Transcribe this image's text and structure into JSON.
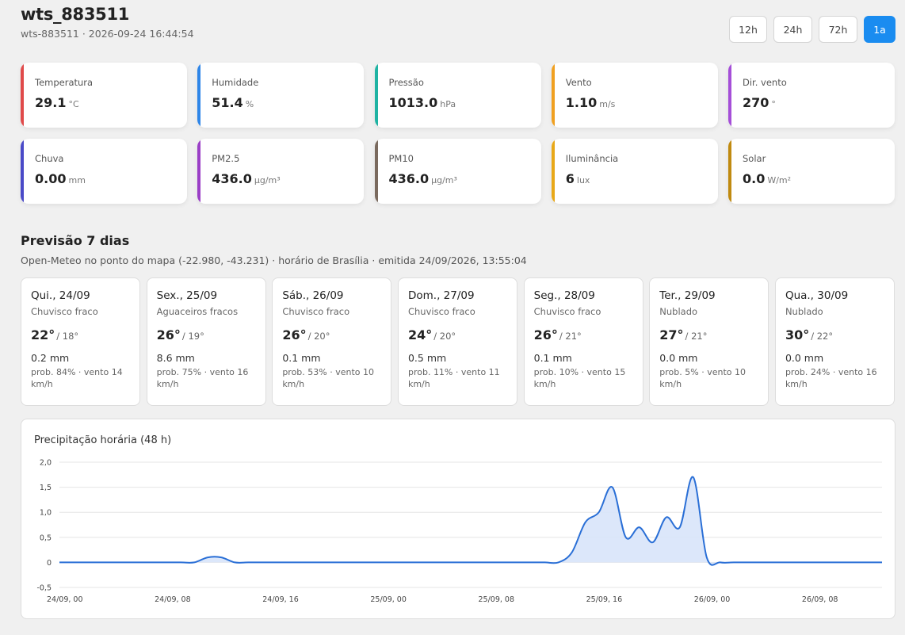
{
  "header": {
    "title": "wts_883511",
    "subtitle": "wts-883511 · 2026-09-24 16:44:54"
  },
  "ranges": [
    {
      "label": "12h",
      "active": false
    },
    {
      "label": "24h",
      "active": false
    },
    {
      "label": "72h",
      "active": false
    },
    {
      "label": "1a",
      "active": true
    }
  ],
  "colors": {
    "accent": "#1a8cf0",
    "chart_line": "#2a6fd6",
    "chart_fill": "#d8e4fa"
  },
  "cards": [
    {
      "label": "Temperatura",
      "value": "29.1",
      "unit": "°C",
      "color": "#e04a4a"
    },
    {
      "label": "Humidade",
      "value": "51.4",
      "unit": "%",
      "color": "#2f86e8"
    },
    {
      "label": "Pressão",
      "value": "1013.0",
      "unit": "hPa",
      "color": "#1fb3a3"
    },
    {
      "label": "Vento",
      "value": "1.10",
      "unit": "m/s",
      "color": "#f0a020"
    },
    {
      "label": "Dir. vento",
      "value": "270",
      "unit": "°",
      "color": "#a54fd8"
    },
    {
      "label": "Chuva",
      "value": "0.00",
      "unit": "mm",
      "color": "#4a4ac8"
    },
    {
      "label": "PM2.5",
      "value": "436.0",
      "unit": "µg/m³",
      "color": "#9b3fc7"
    },
    {
      "label": "PM10",
      "value": "436.0",
      "unit": "µg/m³",
      "color": "#7a6a5e"
    },
    {
      "label": "Iluminância",
      "value": "6",
      "unit": "lux",
      "color": "#e8a818"
    },
    {
      "label": "Solar",
      "value": "0.0",
      "unit": "W/m²",
      "color": "#c08a10"
    }
  ],
  "forecast": {
    "title": "Previsão 7 dias",
    "subtitle": "Open-Meteo no ponto do mapa (-22.980, -43.231) · horário de Brasília · emitida 24/09/2026, 13:55:04",
    "days": [
      {
        "date": "Qui., 24/09",
        "cond": "Chuvisco fraco",
        "max": "22°",
        "min": "/ 18°",
        "rain": "0.2 mm",
        "prob": "prob. 84% · vento 14 km/h"
      },
      {
        "date": "Sex., 25/09",
        "cond": "Aguaceiros fracos",
        "max": "26°",
        "min": "/ 19°",
        "rain": "8.6 mm",
        "prob": "prob. 75% · vento 16 km/h"
      },
      {
        "date": "Sáb., 26/09",
        "cond": "Chuvisco fraco",
        "max": "26°",
        "min": "/ 20°",
        "rain": "0.1 mm",
        "prob": "prob. 53% · vento 10 km/h"
      },
      {
        "date": "Dom., 27/09",
        "cond": "Chuvisco fraco",
        "max": "24°",
        "min": "/ 20°",
        "rain": "0.5 mm",
        "prob": "prob. 11% · vento 11 km/h"
      },
      {
        "date": "Seg., 28/09",
        "cond": "Chuvisco fraco",
        "max": "26°",
        "min": "/ 21°",
        "rain": "0.1 mm",
        "prob": "prob. 10% · vento 15 km/h"
      },
      {
        "date": "Ter., 29/09",
        "cond": "Nublado",
        "max": "27°",
        "min": "/ 21°",
        "rain": "0.0 mm",
        "prob": "prob. 5% · vento 10 km/h"
      },
      {
        "date": "Qua., 30/09",
        "cond": "Nublado",
        "max": "30°",
        "min": "/ 22°",
        "rain": "0.0 mm",
        "prob": "prob. 24% · vento 16 km/h"
      }
    ]
  },
  "chart_data": {
    "type": "area",
    "title": "Precipitação horária (48 h)",
    "xlabel": "",
    "ylabel": "",
    "ylim": [
      -0.5,
      2.0
    ],
    "yticks": [
      "2,0",
      "1,5",
      "1,0",
      "0,5",
      "0",
      "-0,5"
    ],
    "ytick_values": [
      2.0,
      1.5,
      1.0,
      0.5,
      0,
      -0.5
    ],
    "xticks": [
      "24/09, 00",
      "24/09, 08",
      "24/09, 16",
      "25/09, 00",
      "25/09, 08",
      "25/09, 16",
      "26/09, 00",
      "26/09, 08"
    ],
    "xtick_values": [
      0,
      8,
      16,
      24,
      32,
      40,
      48,
      56
    ],
    "xlim": [
      0,
      61
    ],
    "grid": true,
    "legend": "none",
    "series": [
      {
        "x": [
          0,
          1,
          2,
          3,
          4,
          5,
          6,
          7,
          8,
          9,
          10,
          11,
          12,
          13,
          14,
          15,
          16,
          17,
          18,
          19,
          20,
          21,
          22,
          23,
          24,
          25,
          26,
          27,
          28,
          29,
          30,
          31,
          32,
          33,
          34,
          35,
          36,
          37,
          38,
          39,
          40,
          41,
          42,
          43,
          44,
          45,
          46,
          47,
          48,
          49,
          50,
          51,
          52,
          53,
          54,
          55,
          56,
          57,
          58,
          59,
          60,
          61
        ],
        "values": [
          0,
          0,
          0,
          0,
          0,
          0,
          0,
          0,
          0,
          0,
          0,
          0.1,
          0.1,
          0,
          0,
          0,
          0,
          0,
          0,
          0,
          0,
          0,
          0,
          0,
          0,
          0,
          0,
          0,
          0,
          0,
          0,
          0,
          0,
          0,
          0,
          0,
          0,
          0,
          0.2,
          0.8,
          1.0,
          1.5,
          0.5,
          0.7,
          0.4,
          0.9,
          0.7,
          1.7,
          0.1,
          0,
          0,
          0,
          0,
          0,
          0,
          0,
          0,
          0,
          0,
          0,
          0,
          0
        ]
      }
    ]
  }
}
